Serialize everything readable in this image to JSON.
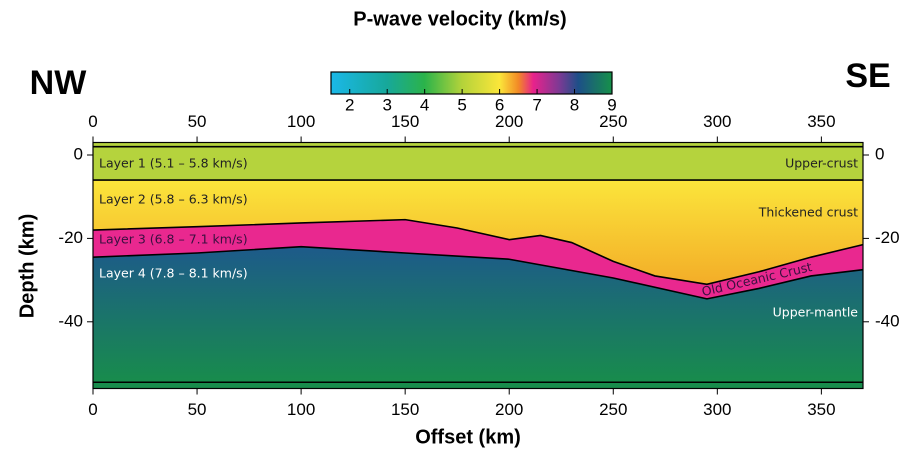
{
  "chart_data": {
    "type": "layer-model",
    "colorbar": {
      "title": "P-wave velocity (km/s)",
      "lim": [
        1.5,
        9
      ],
      "ticks": [
        2,
        3,
        4,
        5,
        6,
        7,
        8,
        9
      ],
      "stops": [
        {
          "value": 1.5,
          "color": "#1ab8e8"
        },
        {
          "value": 3,
          "color": "#17a89a"
        },
        {
          "value": 4,
          "color": "#2bb34a"
        },
        {
          "value": 5,
          "color": "#b4d33a"
        },
        {
          "value": 6,
          "color": "#fbe63a"
        },
        {
          "value": 6.5,
          "color": "#f28a26"
        },
        {
          "value": 6.9,
          "color": "#e8228c"
        },
        {
          "value": 7.6,
          "color": "#7b3a94"
        },
        {
          "value": 8.1,
          "color": "#1d4f88"
        },
        {
          "value": 9,
          "color": "#16914a"
        }
      ]
    },
    "left_label": "NW",
    "right_label": "SE",
    "xlabel": "Offset (km)",
    "ylabel": "Depth (km)",
    "xlim": [
      0,
      370
    ],
    "xticks": [
      0,
      50,
      100,
      150,
      200,
      250,
      300,
      350
    ],
    "ylim": [
      -56,
      3
    ],
    "yticks": [
      0,
      -20,
      -40
    ],
    "boundaries": [
      {
        "x": [
          0,
          370
        ],
        "depth": [
          2,
          2
        ]
      },
      {
        "x": [
          0,
          370
        ],
        "depth": [
          -6,
          -6
        ]
      },
      {
        "x": [
          0,
          50,
          100,
          150,
          175,
          200,
          215,
          230,
          250,
          270,
          295,
          320,
          345,
          370
        ],
        "depth": [
          -18,
          -17.2,
          -16.3,
          -15.5,
          -17.5,
          -20.3,
          -19.3,
          -21,
          -25.5,
          -29,
          -31,
          -28,
          -24.5,
          -21.5
        ]
      },
      {
        "x": [
          0,
          50,
          100,
          150,
          200,
          250,
          295,
          320,
          345,
          370
        ],
        "depth": [
          -24.5,
          -23.5,
          -22,
          -23.5,
          -25,
          -29.5,
          -34.5,
          -32,
          -29,
          -27.5
        ]
      },
      {
        "x": [
          0,
          370
        ],
        "depth": [
          -54.5,
          -54.5
        ]
      }
    ],
    "layers": [
      {
        "label": "Layer 1 (5.1 – 5.8 km/s)",
        "zone": "Upper-crust",
        "colors": [
          "#b5d33d",
          "#b5d33d"
        ]
      },
      {
        "label": "Layer 2 (5.8 – 6.3 km/s)",
        "zone": "Thickened crust",
        "colors": [
          "#fbe53b",
          "#f3ad28"
        ]
      },
      {
        "label": "Layer 3 (6.8 – 7.1 km/s)",
        "zone": "Old Oceanic Crust",
        "colors": [
          "#e9288f",
          "#e9288f"
        ]
      },
      {
        "label": "Layer 4 (7.8 – 8.1 km/s)",
        "zone": "Upper-mantle",
        "colors": [
          "#1d5a8a",
          "#188c4c"
        ]
      }
    ]
  }
}
